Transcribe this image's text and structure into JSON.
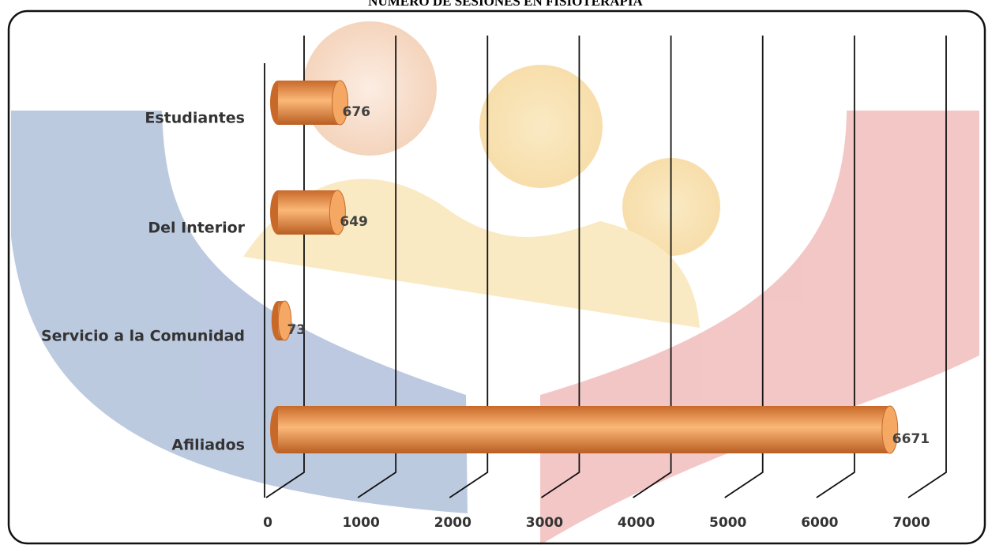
{
  "chart_data": {
    "type": "bar3d",
    "title": "NÚMERO DE SESIONES EN FISIOTERAPIA",
    "categories": [
      "Estudiantes",
      "Del Interior",
      "Servicio a la Comunidad",
      "Afiliados"
    ],
    "values": [
      676,
      649,
      73,
      6671
    ],
    "color": "#f29a48",
    "xlim": [
      0,
      7000
    ],
    "xticks": [
      0,
      1000,
      2000,
      3000,
      4000,
      5000,
      6000,
      7000
    ],
    "grid": true
  }
}
